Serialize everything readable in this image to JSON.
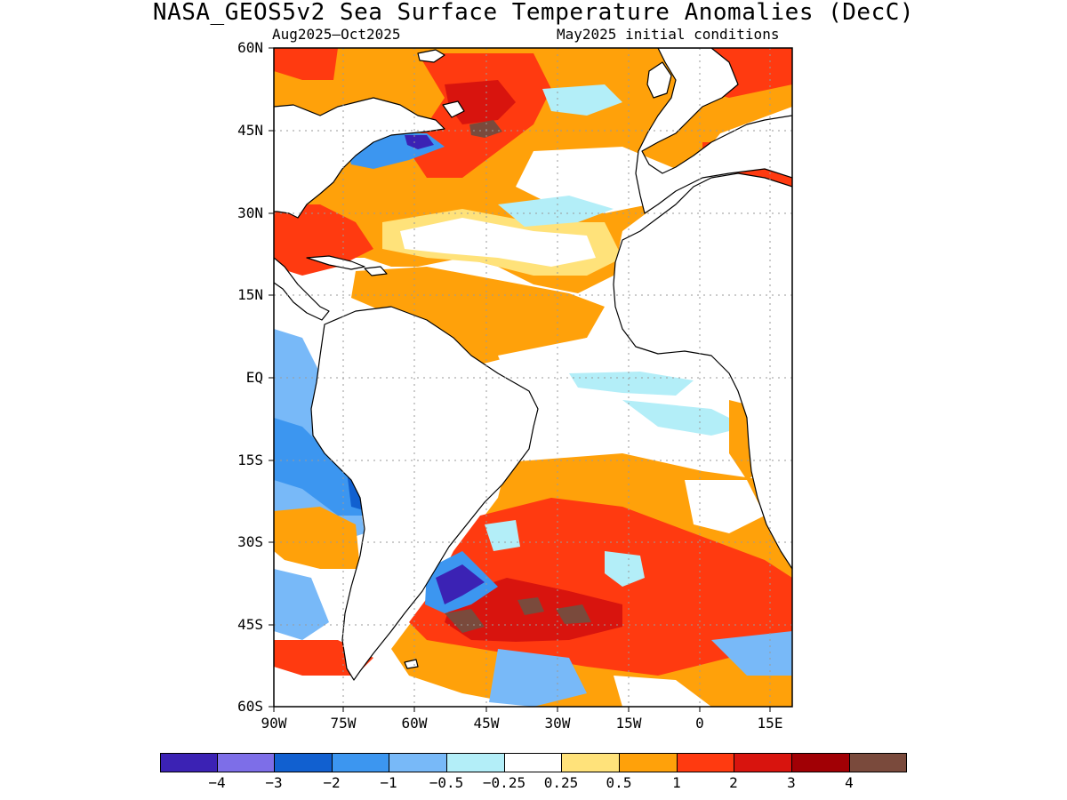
{
  "title": "NASA_GEOS5v2 Sea Surface Temperature Anomalies (DecC)",
  "subtitle_left": "Aug2025–Oct2025",
  "subtitle_right": "May2025 initial conditions",
  "lat_labels": [
    "60N",
    "45N",
    "30N",
    "15N",
    "EQ",
    "15S",
    "30S",
    "45S",
    "60S"
  ],
  "lon_labels": [
    "90W",
    "75W",
    "60W",
    "45W",
    "30W",
    "15W",
    "0",
    "15E"
  ],
  "colorbar": {
    "labels": [
      "−4",
      "−3",
      "−2",
      "−1",
      "−0.5",
      "−0.25",
      "0.25",
      "0.5",
      "1",
      "2",
      "3",
      "4"
    ],
    "colors": [
      "#3b22b4",
      "#7d6ee8",
      "#1160d0",
      "#3c96f0",
      "#78b9f8",
      "#b3eef8",
      "#ffffff",
      "#ffe27a",
      "#ffa10a",
      "#ff3a10",
      "#d8140e",
      "#a10005",
      "#7a4a3c"
    ]
  },
  "colors": {
    "land": "#ffffff",
    "coast": "#000000",
    "grid": "#9a9a9a",
    "neg_strong": "#3b22b4",
    "neg_mid": "#1160d0",
    "neg_light": "#78b9f8",
    "neg_faint": "#b3eef8",
    "pos_faint": "#ffe27a",
    "pos_light": "#ffa10a",
    "pos_mid": "#ff3a10",
    "pos_strong": "#d8140e",
    "pos_extreme": "#7a4a3c"
  }
}
